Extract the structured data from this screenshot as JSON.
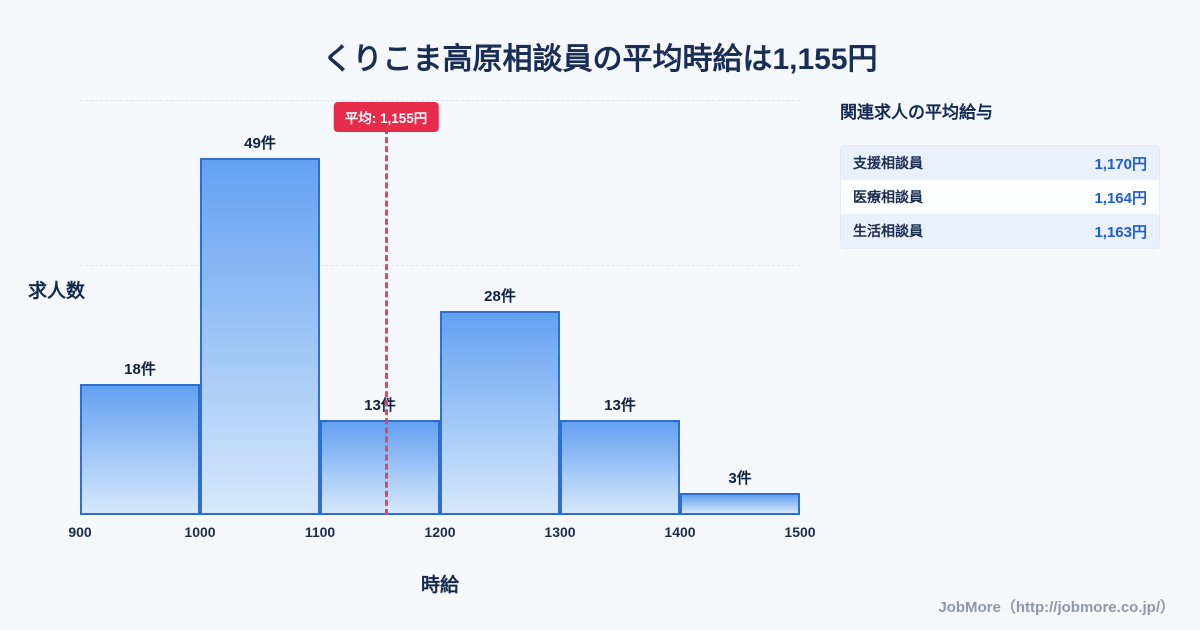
{
  "title": "くりこま高原相談員の平均時給は1,155円",
  "chart_data": {
    "type": "bar",
    "subtype": "histogram",
    "title": "くりこま高原相談員の平均時給は1,155円",
    "xlabel": "時給",
    "ylabel": "求人数",
    "bin_edges": [
      900,
      1000,
      1100,
      1200,
      1300,
      1400,
      1500
    ],
    "values": [
      18,
      49,
      13,
      28,
      13,
      3
    ],
    "bar_labels": [
      "18件",
      "49件",
      "13件",
      "28件",
      "13件",
      "3件"
    ],
    "x_ticks": [
      "900",
      "1000",
      "1100",
      "1200",
      "1300",
      "1400",
      "1500"
    ],
    "ylim": [
      0,
      57
    ],
    "average": 1155,
    "average_label": "平均: 1,155円",
    "grid": "horizontal-dashed",
    "legend": "none",
    "colors": {
      "bar_fill_top": "#63a1f1",
      "bar_fill_bottom": "#d7e8fc",
      "bar_border": "#2f6fd0",
      "average_line": "#e8445f",
      "average_badge_bg": "#e72b4b",
      "average_badge_text": "#ffffff"
    }
  },
  "side_panel": {
    "heading": "関連求人の平均給与",
    "rows": [
      {
        "label": "支援相談員",
        "value": "1,170円"
      },
      {
        "label": "医療相談員",
        "value": "1,164円"
      },
      {
        "label": "生活相談員",
        "value": "1,163円"
      }
    ]
  },
  "footer": {
    "credit": "JobMore（http://jobmore.co.jp/）"
  }
}
